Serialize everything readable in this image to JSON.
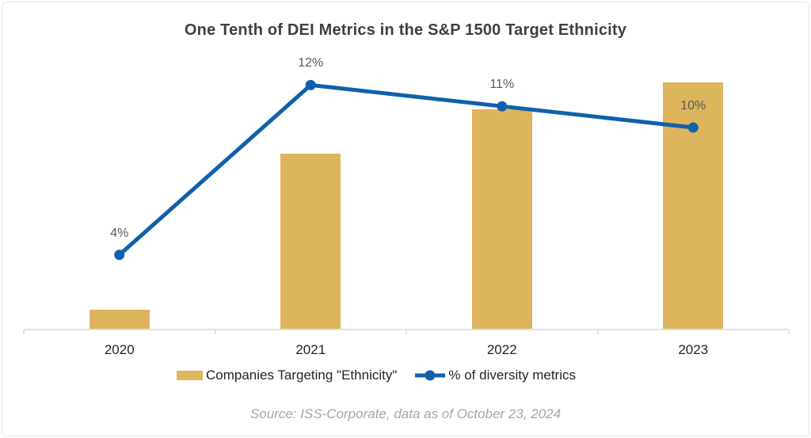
{
  "frame": {
    "title": "One Tenth of DEI Metrics in the S&P 1500 Target Ethnicity",
    "source_note": "Source: ISS-Corporate, data as of October 23, 2024"
  },
  "legend": {
    "bar_label": "Companies Targeting \"Ethnicity\"",
    "line_label": "% of diversity metrics"
  },
  "colors": {
    "bar": "#DDB55C",
    "line": "#1160AC",
    "title_text": "#404040",
    "data_label_text": "#595959",
    "axis_label_text": "#252423",
    "axis_line": "#E2E2E2",
    "source_text": "#A6A6A6",
    "frame_border": "#E6E6E6"
  },
  "chart_data": {
    "type": "combo",
    "title": "One Tenth of DEI Metrics in the S&P 1500 Target Ethnicity",
    "categories": [
      "2020",
      "2021",
      "2022",
      "2023"
    ],
    "series": [
      {
        "name": "Companies Targeting \"Ethnicity\"",
        "type": "bar",
        "values_relative_height": [
          0.08,
          0.71,
          0.89,
          1.0
        ],
        "color": "#DDB55C"
      },
      {
        "name": "% of diversity metrics",
        "type": "line",
        "values": [
          4,
          12,
          11,
          10
        ],
        "data_labels": [
          "4%",
          "12%",
          "11%",
          "10%"
        ],
        "color": "#1160AC"
      }
    ],
    "xlabel": "",
    "ylabel": "",
    "grid": false,
    "value_axis_visible": false,
    "legend_position": "bottom",
    "source": "Source: ISS-Corporate, data as of October 23, 2024"
  }
}
